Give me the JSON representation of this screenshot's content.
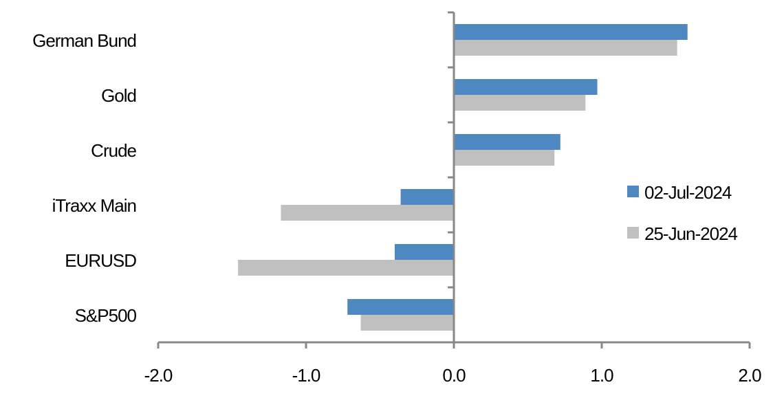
{
  "chart_data": {
    "type": "bar",
    "orientation": "horizontal",
    "categories": [
      "German Bund",
      "Gold",
      "Crude",
      "iTraxx Main",
      "EURUSD",
      "S&P500"
    ],
    "series": [
      {
        "name": "02-Jul-2024",
        "color": "#4f88c0",
        "values": [
          1.58,
          0.97,
          0.72,
          -0.36,
          -0.4,
          -0.72
        ]
      },
      {
        "name": "25-Jun-2024",
        "color": "#c0c0c0",
        "values": [
          1.51,
          0.89,
          0.68,
          -1.17,
          -1.46,
          -0.63
        ]
      }
    ],
    "xlim": [
      -2.0,
      2.0
    ],
    "xticks": [
      "-2.0",
      "-1.0",
      "0.0",
      "1.0",
      "2.0"
    ],
    "xtick_values": [
      -2,
      -1,
      0,
      1,
      2
    ],
    "grid": false,
    "legend_position": "right"
  }
}
